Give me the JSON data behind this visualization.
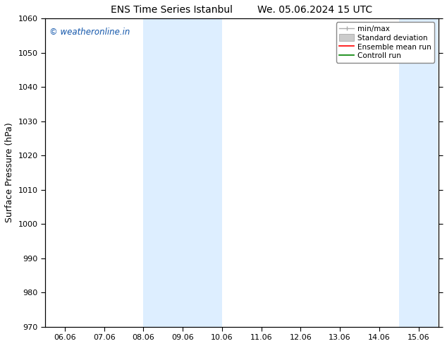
{
  "title1": "ENS Time Series Istanbul",
  "title2": "We. 05.06.2024 15 UTC",
  "ylabel": "Surface Pressure (hPa)",
  "ylim": [
    970,
    1060
  ],
  "yticks": [
    970,
    980,
    990,
    1000,
    1010,
    1020,
    1030,
    1040,
    1050,
    1060
  ],
  "x_labels": [
    "06.06",
    "07.06",
    "08.06",
    "09.06",
    "10.06",
    "11.06",
    "12.06",
    "13.06",
    "14.06",
    "15.06"
  ],
  "x_positions": [
    0,
    1,
    2,
    3,
    4,
    5,
    6,
    7,
    8,
    9
  ],
  "xlim": [
    -0.5,
    9.5
  ],
  "shaded_bands": [
    {
      "x_start": 2.0,
      "x_end": 4.0,
      "color": "#ddeeff"
    },
    {
      "x_start": 8.5,
      "x_end": 9.5,
      "color": "#ddeeff"
    }
  ],
  "watermark": "© weatheronline.in",
  "watermark_color": "#1155aa",
  "background_color": "#ffffff",
  "spine_color": "#000000",
  "tick_color": "#000000",
  "grid_color": "#cccccc",
  "font_size_title": 10,
  "font_size_axis": 9,
  "font_size_tick": 8,
  "font_size_legend": 7.5,
  "font_size_watermark": 8.5
}
